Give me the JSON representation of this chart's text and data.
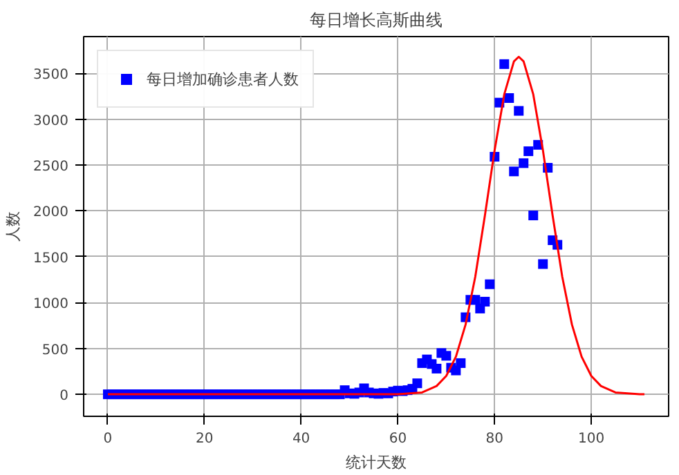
{
  "chart_data": {
    "type": "scatter",
    "title": "每日增长高斯曲线",
    "xlabel": "统计天数",
    "ylabel": "人数",
    "xlim": [
      -5,
      116
    ],
    "ylim": [
      -240,
      3900
    ],
    "xticks": [
      0,
      20,
      40,
      60,
      80,
      100
    ],
    "yticks": [
      0,
      500,
      1000,
      1500,
      2000,
      2500,
      3000,
      3500
    ],
    "grid": true,
    "legend": "top left",
    "series": [
      {
        "name": "每日增加确诊患者人数",
        "marker": "square",
        "color": "#0000ff",
        "x": [
          0,
          1,
          2,
          3,
          4,
          5,
          6,
          7,
          8,
          9,
          10,
          11,
          12,
          13,
          14,
          15,
          16,
          17,
          18,
          19,
          20,
          21,
          22,
          23,
          24,
          25,
          26,
          27,
          28,
          29,
          30,
          31,
          32,
          33,
          34,
          35,
          36,
          37,
          38,
          39,
          40,
          41,
          42,
          43,
          44,
          45,
          46,
          47,
          48,
          49,
          50,
          51,
          52,
          53,
          54,
          55,
          56,
          57,
          58,
          59,
          60,
          61,
          62,
          63,
          64,
          65,
          66,
          67,
          68,
          69,
          70,
          71,
          72,
          73,
          74,
          75,
          76,
          77,
          78,
          79,
          80,
          81,
          82,
          83,
          84,
          85,
          86,
          87,
          88,
          89,
          90,
          91,
          92,
          93
        ],
        "values": [
          0,
          0,
          0,
          0,
          0,
          0,
          0,
          0,
          0,
          0,
          0,
          0,
          0,
          0,
          0,
          0,
          0,
          0,
          0,
          0,
          0,
          0,
          0,
          0,
          0,
          0,
          0,
          0,
          0,
          0,
          0,
          0,
          0,
          0,
          0,
          0,
          0,
          0,
          0,
          0,
          0,
          0,
          0,
          0,
          0,
          0,
          0,
          0,
          0,
          45,
          10,
          5,
          20,
          65,
          20,
          10,
          5,
          15,
          10,
          30,
          40,
          35,
          45,
          60,
          120,
          340,
          380,
          330,
          280,
          450,
          420,
          290,
          260,
          340,
          840,
          1030,
          1030,
          935,
          1010,
          1200,
          2590,
          3180,
          3600,
          3230,
          2430,
          3090,
          2520,
          2650,
          1950,
          2720,
          1420,
          2470,
          1680,
          1630
        ]
      },
      {
        "type": "line",
        "line_style": "solid",
        "color": "#ff0000",
        "x": [
          0,
          40,
          55,
          60,
          65,
          68,
          70,
          72,
          74,
          76,
          78,
          80,
          82,
          84,
          85,
          86,
          88,
          90,
          92,
          94,
          96,
          98,
          100,
          102,
          105,
          110,
          111
        ],
        "values": [
          0,
          0,
          0,
          0,
          20,
          90,
          200,
          410,
          760,
          1280,
          1950,
          2660,
          3270,
          3630,
          3680,
          3630,
          3270,
          2660,
          1950,
          1280,
          760,
          410,
          200,
          90,
          20,
          0,
          0
        ]
      }
    ]
  }
}
